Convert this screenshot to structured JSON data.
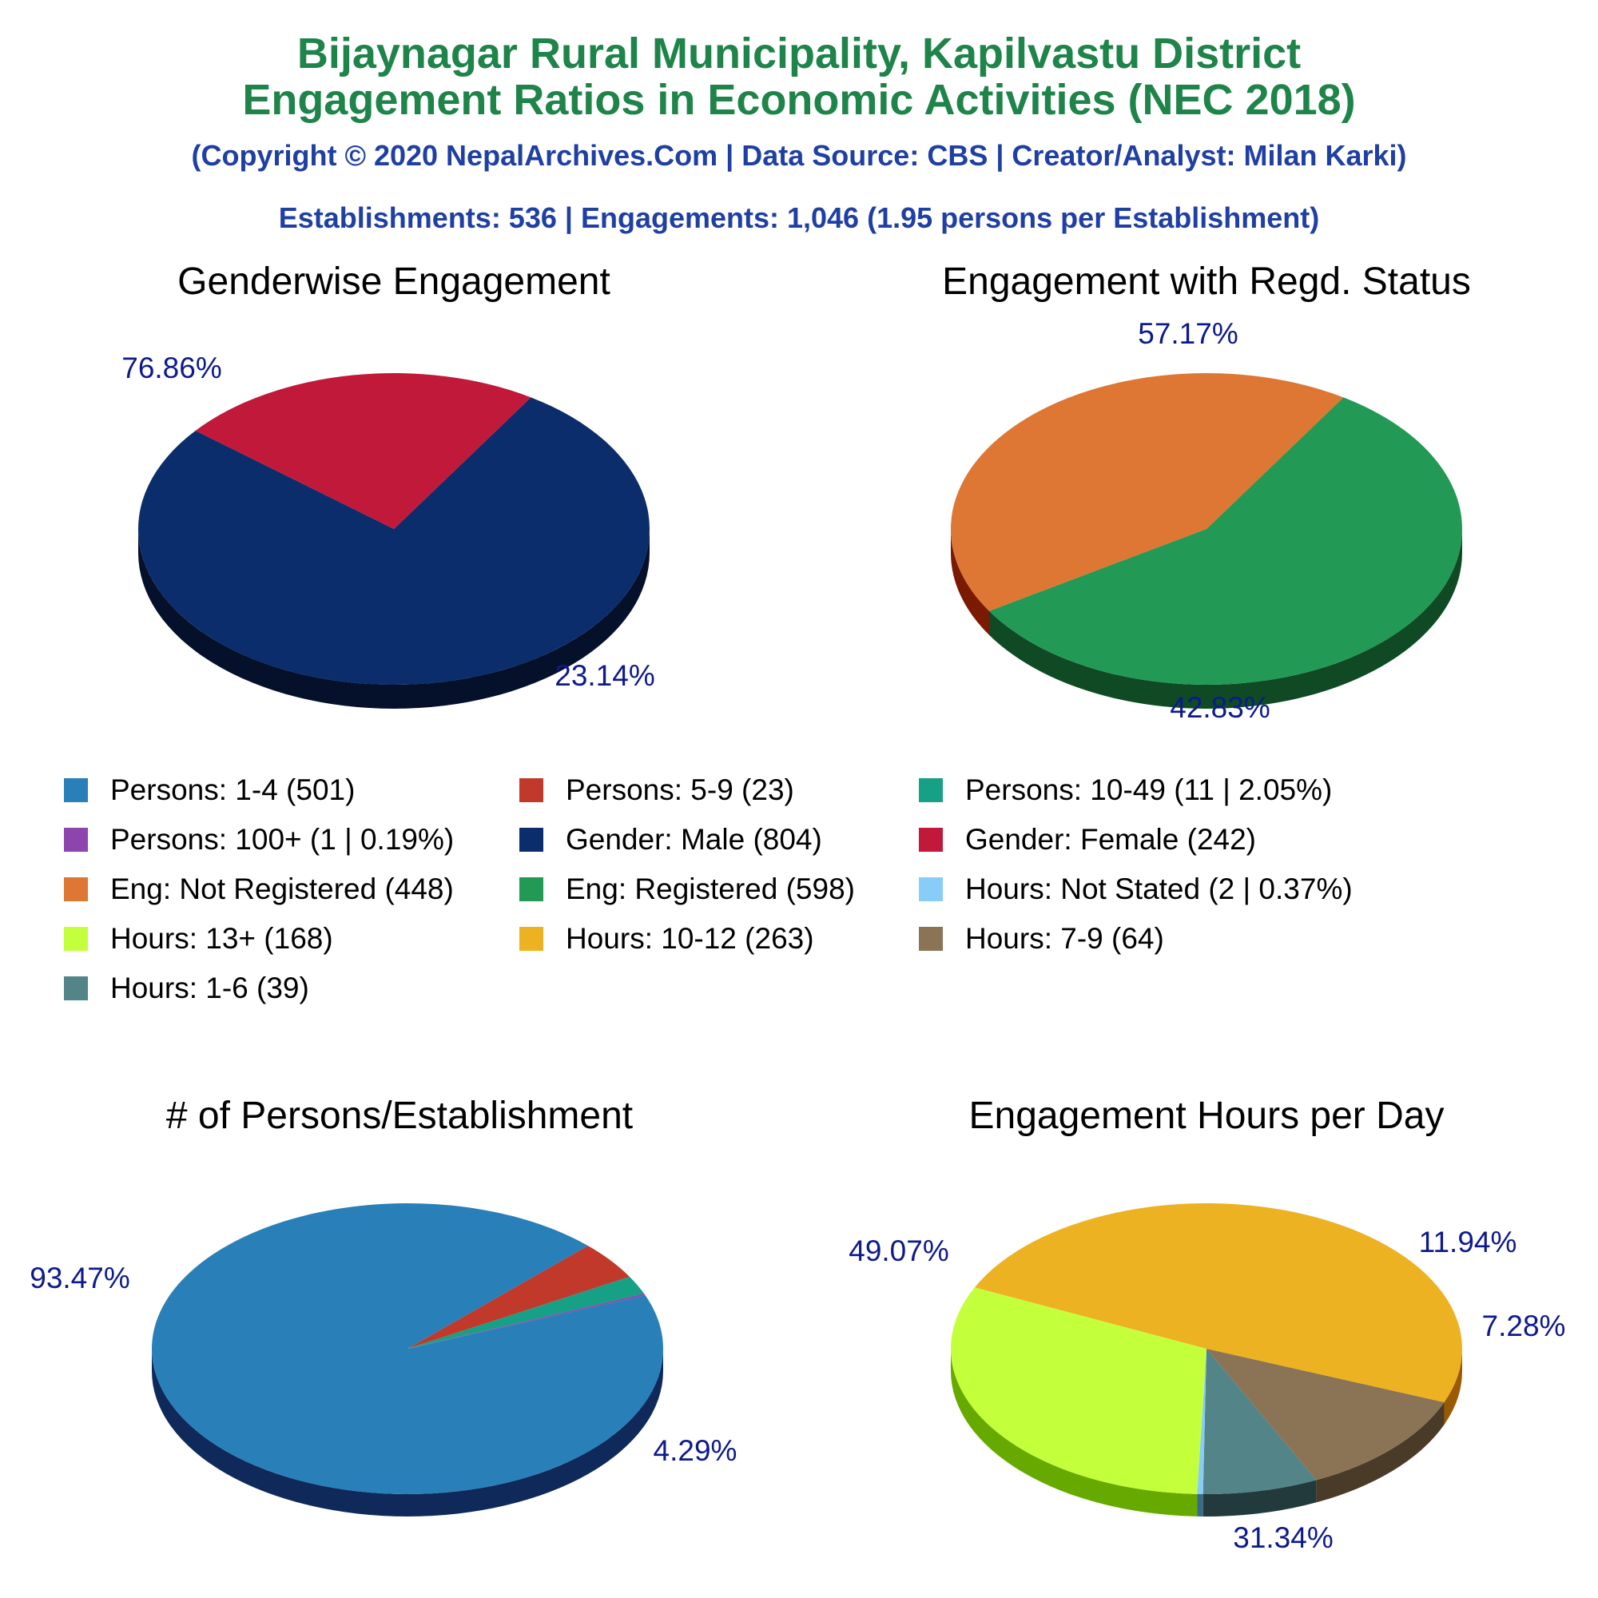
{
  "header": {
    "title_line1": "Bijaynagar Rural Municipality, Kapilvastu District",
    "title_line2": "Engagement Ratios in Economic Activities (NEC 2018)",
    "copyright": "(Copyright © 2020 NepalArchives.Com | Data Source: CBS | Creator/Analyst: Milan Karki)",
    "summary": "Establishments: 536 | Engagements: 1,046 (1.95 persons per Establishment)"
  },
  "legend": [
    {
      "label": "Persons: 1-4 (501)",
      "color": "#2980b9"
    },
    {
      "label": "Persons: 5-9 (23)",
      "color": "#c0392b"
    },
    {
      "label": "Persons: 10-49 (11 | 2.05%)",
      "color": "#16a085"
    },
    {
      "label": "Persons: 100+ (1 | 0.19%)",
      "color": "#8e44ad"
    },
    {
      "label": "Gender: Male (804)",
      "color": "#0b2d6b"
    },
    {
      "label": "Gender: Female (242)",
      "color": "#c0193a"
    },
    {
      "label": "Eng: Not Registered (448)",
      "color": "#dd7733"
    },
    {
      "label": "Eng: Registered (598)",
      "color": "#229955"
    },
    {
      "label": "Hours: Not Stated (2 | 0.37%)",
      "color": "#88ccf8"
    },
    {
      "label": "Hours: 13+ (168)",
      "color": "#c4ff3c"
    },
    {
      "label": "Hours: 10-12 (263)",
      "color": "#ecb221"
    },
    {
      "label": "Hours: 7-9 (64)",
      "color": "#8b7355"
    },
    {
      "label": "Hours: 1-6 (39)",
      "color": "#538487"
    }
  ],
  "chart_data": [
    {
      "type": "pie",
      "title": "Genderwise Engagement",
      "slices": [
        {
          "name": "Gender: Male",
          "value": 804,
          "percent": 76.86,
          "label": "76.86%",
          "color": "#0b2d6b",
          "side": "#05102a"
        },
        {
          "name": "Gender: Female",
          "value": 242,
          "percent": 23.14,
          "label": "23.14%",
          "color": "#c0193a",
          "side": "#6b0000"
        }
      ]
    },
    {
      "type": "pie",
      "title": "Engagement with Regd. Status",
      "slices": [
        {
          "name": "Eng: Registered",
          "value": 598,
          "percent": 57.17,
          "label": "57.17%",
          "color": "#229955",
          "side": "#0f4a25"
        },
        {
          "name": "Eng: Not Registered",
          "value": 448,
          "percent": 42.83,
          "label": "42.83%",
          "color": "#dd7733",
          "side": "#7a1a00"
        }
      ]
    },
    {
      "type": "pie",
      "title": "# of Persons/Establishment",
      "slices": [
        {
          "name": "Persons: 1-4",
          "value": 501,
          "percent": 93.47,
          "label": "93.47%",
          "color": "#2980b9",
          "side": "#0f2a5a"
        },
        {
          "name": "Persons: 5-9",
          "value": 23,
          "percent": 4.29,
          "label": "4.29%",
          "color": "#c0392b",
          "side": "#6b0000"
        },
        {
          "name": "Persons: 10-49",
          "value": 11,
          "percent": 2.05,
          "label": "",
          "color": "#16a085",
          "side": "#0b4a3d"
        },
        {
          "name": "Persons: 100+",
          "value": 1,
          "percent": 0.19,
          "label": "",
          "color": "#8e44ad",
          "side": "#3f1a50"
        }
      ]
    },
    {
      "type": "pie",
      "title": "Engagement Hours per Day",
      "slices": [
        {
          "name": "Hours: 7-9",
          "value": 64,
          "percent": 11.94,
          "label": "11.94%",
          "color": "#8b7355",
          "side": "#4a3a28"
        },
        {
          "name": "Hours: 1-6",
          "value": 39,
          "percent": 7.28,
          "label": "7.28%",
          "color": "#538487",
          "side": "#233a3c"
        },
        {
          "name": "Hours: Not Stated",
          "value": 2,
          "percent": 0.37,
          "label": "",
          "color": "#88ccf8",
          "side": "#3a6a8a"
        },
        {
          "name": "Hours: 13+",
          "value": 168,
          "percent": 31.34,
          "label": "31.34%",
          "color": "#c4ff3c",
          "side": "#66aa00"
        },
        {
          "name": "Hours: 10-12",
          "value": 263,
          "percent": 49.07,
          "label": "49.07%",
          "color": "#ecb221",
          "side": "#9a5a00"
        }
      ]
    }
  ]
}
